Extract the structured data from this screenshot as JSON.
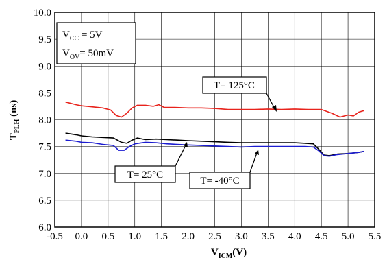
{
  "chart_data": {
    "type": "line",
    "title": "",
    "xlabel": {
      "main": "V",
      "sub": "ICM",
      "suffix": "(V)"
    },
    "ylabel": {
      "main": "T",
      "sub": "PLH",
      "suffix": " (ns)"
    },
    "xlim": [
      -0.5,
      5.5
    ],
    "ylim": [
      6.0,
      10.0
    ],
    "x_ticks": [
      -0.5,
      0.0,
      0.5,
      1.0,
      1.5,
      2.0,
      2.5,
      3.0,
      3.5,
      4.0,
      4.5,
      5.0,
      5.5
    ],
    "x_tick_labels": [
      "-0.5",
      "0.0",
      "0.5",
      "1.0",
      "1.5",
      "2.0",
      "2.5",
      "3.0",
      "3.5",
      "4.0",
      "4.5",
      "5.0",
      "5.5"
    ],
    "y_ticks": [
      6.0,
      6.5,
      7.0,
      7.5,
      8.0,
      8.5,
      9.0,
      9.5,
      10.0
    ],
    "y_tick_labels": [
      "6.0",
      "6.5",
      "7.0",
      "7.5",
      "8.0",
      "8.5",
      "9.0",
      "9.5",
      "10.0"
    ],
    "grid": true,
    "legend": "none",
    "conditions": [
      {
        "main": "V",
        "sub": "CC",
        "rest": " = 5V"
      },
      {
        "main": "V",
        "sub": "OV",
        "rest": "= 50mV"
      }
    ],
    "series": [
      {
        "color": "#e8231c",
        "annotation": "T= 125°C",
        "x": [
          -0.3,
          -0.1,
          0.0,
          0.2,
          0.4,
          0.55,
          0.65,
          0.75,
          0.85,
          0.95,
          1.05,
          1.2,
          1.35,
          1.45,
          1.55,
          1.75,
          2.0,
          2.25,
          2.5,
          2.75,
          3.0,
          3.25,
          3.5,
          3.75,
          4.0,
          4.25,
          4.5,
          4.7,
          4.85,
          5.0,
          5.1,
          5.2,
          5.3
        ],
        "y": [
          8.33,
          8.28,
          8.26,
          8.24,
          8.22,
          8.18,
          8.08,
          8.05,
          8.12,
          8.22,
          8.27,
          8.27,
          8.25,
          8.28,
          8.23,
          8.23,
          8.22,
          8.22,
          8.21,
          8.19,
          8.19,
          8.19,
          8.2,
          8.19,
          8.2,
          8.19,
          8.19,
          8.12,
          8.05,
          8.09,
          8.07,
          8.14,
          8.17
        ]
      },
      {
        "color": "#000000",
        "annotation": "T= 25°C",
        "x": [
          -0.3,
          -0.1,
          0.0,
          0.2,
          0.4,
          0.6,
          0.75,
          0.85,
          0.95,
          1.05,
          1.2,
          1.4,
          1.6,
          1.8,
          2.0,
          2.25,
          2.5,
          2.75,
          3.0,
          3.25,
          3.5,
          3.75,
          4.0,
          4.2,
          4.35,
          4.45,
          4.55,
          4.65,
          4.8,
          5.0,
          5.2,
          5.3
        ],
        "y": [
          7.75,
          7.72,
          7.7,
          7.68,
          7.67,
          7.66,
          7.58,
          7.56,
          7.62,
          7.66,
          7.63,
          7.64,
          7.63,
          7.62,
          7.61,
          7.6,
          7.59,
          7.58,
          7.57,
          7.57,
          7.57,
          7.57,
          7.57,
          7.56,
          7.55,
          7.45,
          7.34,
          7.33,
          7.36,
          7.37,
          7.39,
          7.41
        ]
      },
      {
        "color": "#1c1cd0",
        "annotation": "T= -40°C",
        "x": [
          -0.3,
          -0.1,
          0.0,
          0.2,
          0.4,
          0.6,
          0.7,
          0.8,
          0.9,
          1.0,
          1.2,
          1.4,
          1.6,
          1.8,
          2.0,
          2.25,
          2.5,
          2.75,
          3.0,
          3.25,
          3.5,
          3.75,
          4.0,
          4.2,
          4.35,
          4.45,
          4.55,
          4.65,
          4.8,
          5.0,
          5.2,
          5.3
        ],
        "y": [
          7.62,
          7.6,
          7.58,
          7.57,
          7.54,
          7.52,
          7.43,
          7.43,
          7.5,
          7.55,
          7.58,
          7.57,
          7.55,
          7.54,
          7.53,
          7.52,
          7.51,
          7.5,
          7.49,
          7.5,
          7.5,
          7.5,
          7.5,
          7.5,
          7.49,
          7.42,
          7.33,
          7.32,
          7.35,
          7.37,
          7.39,
          7.41
        ]
      }
    ]
  }
}
